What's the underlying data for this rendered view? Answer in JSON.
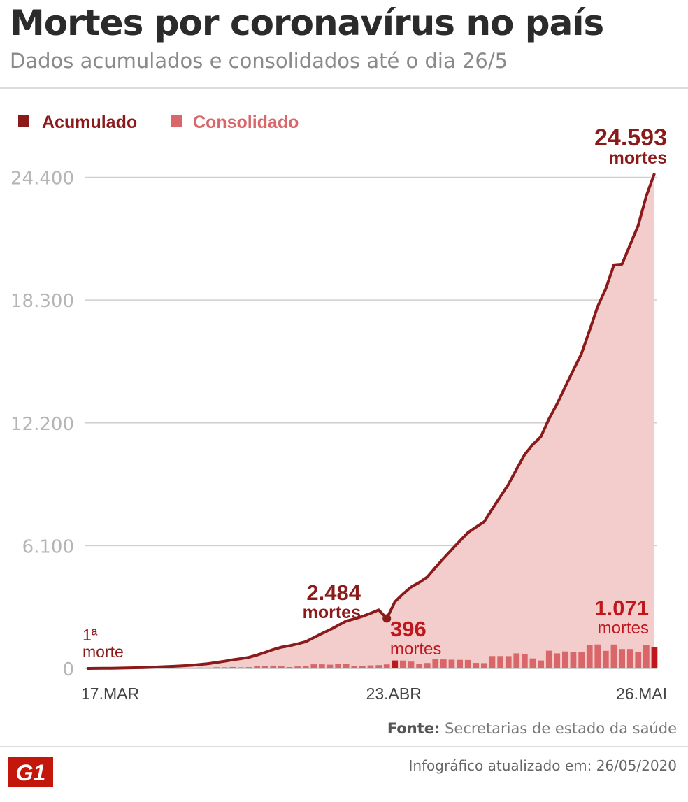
{
  "header": {
    "title": "Mortes por coronavírus no país",
    "subtitle": "Dados acumulados e consolidados até o dia 26/5"
  },
  "footer": {
    "source_label": "Fonte:",
    "source_text": "Secretarias de estado da saúde",
    "updated": "Infográfico atualizado em: 26/05/2020",
    "logo_text": "G1"
  },
  "colors": {
    "accumulated": "#8b1a1a",
    "area": "#f3cccc",
    "consolidated": "#d9676a",
    "consolidated_highlight": "#c0171d",
    "grid": "#cfcfcf",
    "tick": "#b5b5b5",
    "logo": "#c4170c"
  },
  "chart_data": {
    "type": "area",
    "legend": {
      "placement": "top-left",
      "items": [
        "Acumulado",
        "Consolidado"
      ]
    },
    "ylim": [
      0,
      24593
    ],
    "yticks": [
      0,
      6100,
      12200,
      18300,
      24400
    ],
    "ytick_labels": [
      "0",
      "6.100",
      "12.200",
      "18.300",
      "24.400"
    ],
    "xtick_labels": [
      {
        "index": 0,
        "label": "17.MAR"
      },
      {
        "index": 37,
        "label": "23.ABR"
      },
      {
        "index": 70,
        "label": "26.MAI"
      }
    ],
    "series": [
      {
        "name": "Acumulado",
        "type": "area",
        "values": [
          1,
          3,
          6,
          11,
          17,
          25,
          34,
          46,
          59,
          77,
          93,
          114,
          136,
          159,
          201,
          240,
          299,
          359,
          432,
          486,
          553,
          667,
          800,
          941,
          1056,
          1124,
          1223,
          1328,
          1532,
          1736,
          1924,
          2141,
          2354,
          2462,
          2587,
          2741,
          2906,
          2484,
          3313,
          3704,
          4045,
          4271,
          4543,
          5017,
          5466,
          5901,
          6329,
          6750,
          7025,
          7288,
          7921,
          8536,
          9146,
          9897,
          10627,
          11123,
          11519,
          12400,
          13149,
          13993,
          14817,
          15633,
          16792,
          17983,
          18859,
          20047,
          20082,
          21048,
          22013,
          23473,
          24593
        ]
      },
      {
        "name": "Consolidado",
        "type": "bar",
        "values": [
          1,
          2,
          3,
          5,
          6,
          8,
          9,
          12,
          13,
          18,
          16,
          21,
          22,
          23,
          42,
          39,
          59,
          60,
          73,
          54,
          67,
          114,
          133,
          141,
          115,
          68,
          99,
          105,
          204,
          204,
          188,
          217,
          213,
          108,
          125,
          154,
          165,
          200,
          396,
          391,
          341,
          226,
          272,
          474,
          449,
          435,
          428,
          421,
          275,
          263,
          614,
          615,
          610,
          751,
          730,
          496,
          396,
          881,
          749,
          844,
          824,
          816,
          1159,
          1191,
          876,
          1188,
          965,
          966,
          807,
          1179,
          1071
        ]
      }
    ],
    "annotations": [
      {
        "index": 0,
        "value": "1ª",
        "text": "morte",
        "series": "Acumulado"
      },
      {
        "index": 37,
        "value": "2.484",
        "text": "mortes",
        "series": "Acumulado"
      },
      {
        "index": 38,
        "value": "396",
        "text": "mortes",
        "series": "Consolidado"
      },
      {
        "index": 70,
        "value": "1.071",
        "text": "mortes",
        "series": "Consolidado"
      },
      {
        "index": 70,
        "value": "24.593",
        "text": "mortes",
        "series": "Acumulado"
      }
    ]
  }
}
